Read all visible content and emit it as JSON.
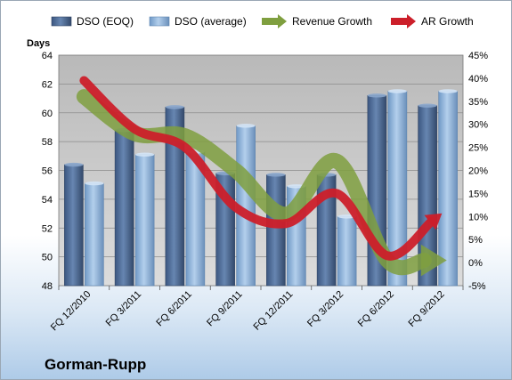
{
  "chart_data": {
    "type": "bar",
    "title": "",
    "company": "Gorman-Rupp",
    "xlabel": "",
    "ylabel": "Days",
    "ylabel_right": "",
    "categories": [
      "FQ 12/2010",
      "FQ 3/2011",
      "FQ 6/2011",
      "FQ 9/2011",
      "FQ 12/2011",
      "FQ 3/2012",
      "FQ 6/2012",
      "FQ 9/2012"
    ],
    "ylim": [
      48,
      64
    ],
    "y_ticks": [
      "48",
      "50",
      "52",
      "54",
      "56",
      "58",
      "60",
      "62",
      "64"
    ],
    "y2lim": [
      -5,
      45
    ],
    "y2_ticks": [
      "-5%",
      "0%",
      "5%",
      "10%",
      "15%",
      "20%",
      "25%",
      "30%",
      "35%",
      "40%",
      "45%"
    ],
    "grid": true,
    "legend_position": "top",
    "series": [
      {
        "name": "DSO (EOQ)",
        "kind": "bar",
        "axis": "left",
        "color": "#4f6d96",
        "values": [
          56.4,
          58.8,
          60.4,
          55.8,
          55.7,
          55.7,
          61.2,
          60.5
        ]
      },
      {
        "name": "DSO (average)",
        "kind": "bar",
        "axis": "left",
        "color": "#8fb4dc",
        "values": [
          55.1,
          57.1,
          57.3,
          59.1,
          54.9,
          52.8,
          61.5,
          61.5
        ]
      },
      {
        "name": "Revenue Growth",
        "kind": "line",
        "axis": "right",
        "color": "#7f9f3f",
        "values": [
          36,
          28,
          27.5,
          20,
          10.5,
          22,
          0.5,
          0.5
        ]
      },
      {
        "name": "AR Growth",
        "kind": "line",
        "axis": "right",
        "color": "#cc1f2a",
        "values": [
          39.5,
          29,
          25,
          12,
          8.5,
          15,
          1.5,
          10
        ]
      }
    ]
  }
}
